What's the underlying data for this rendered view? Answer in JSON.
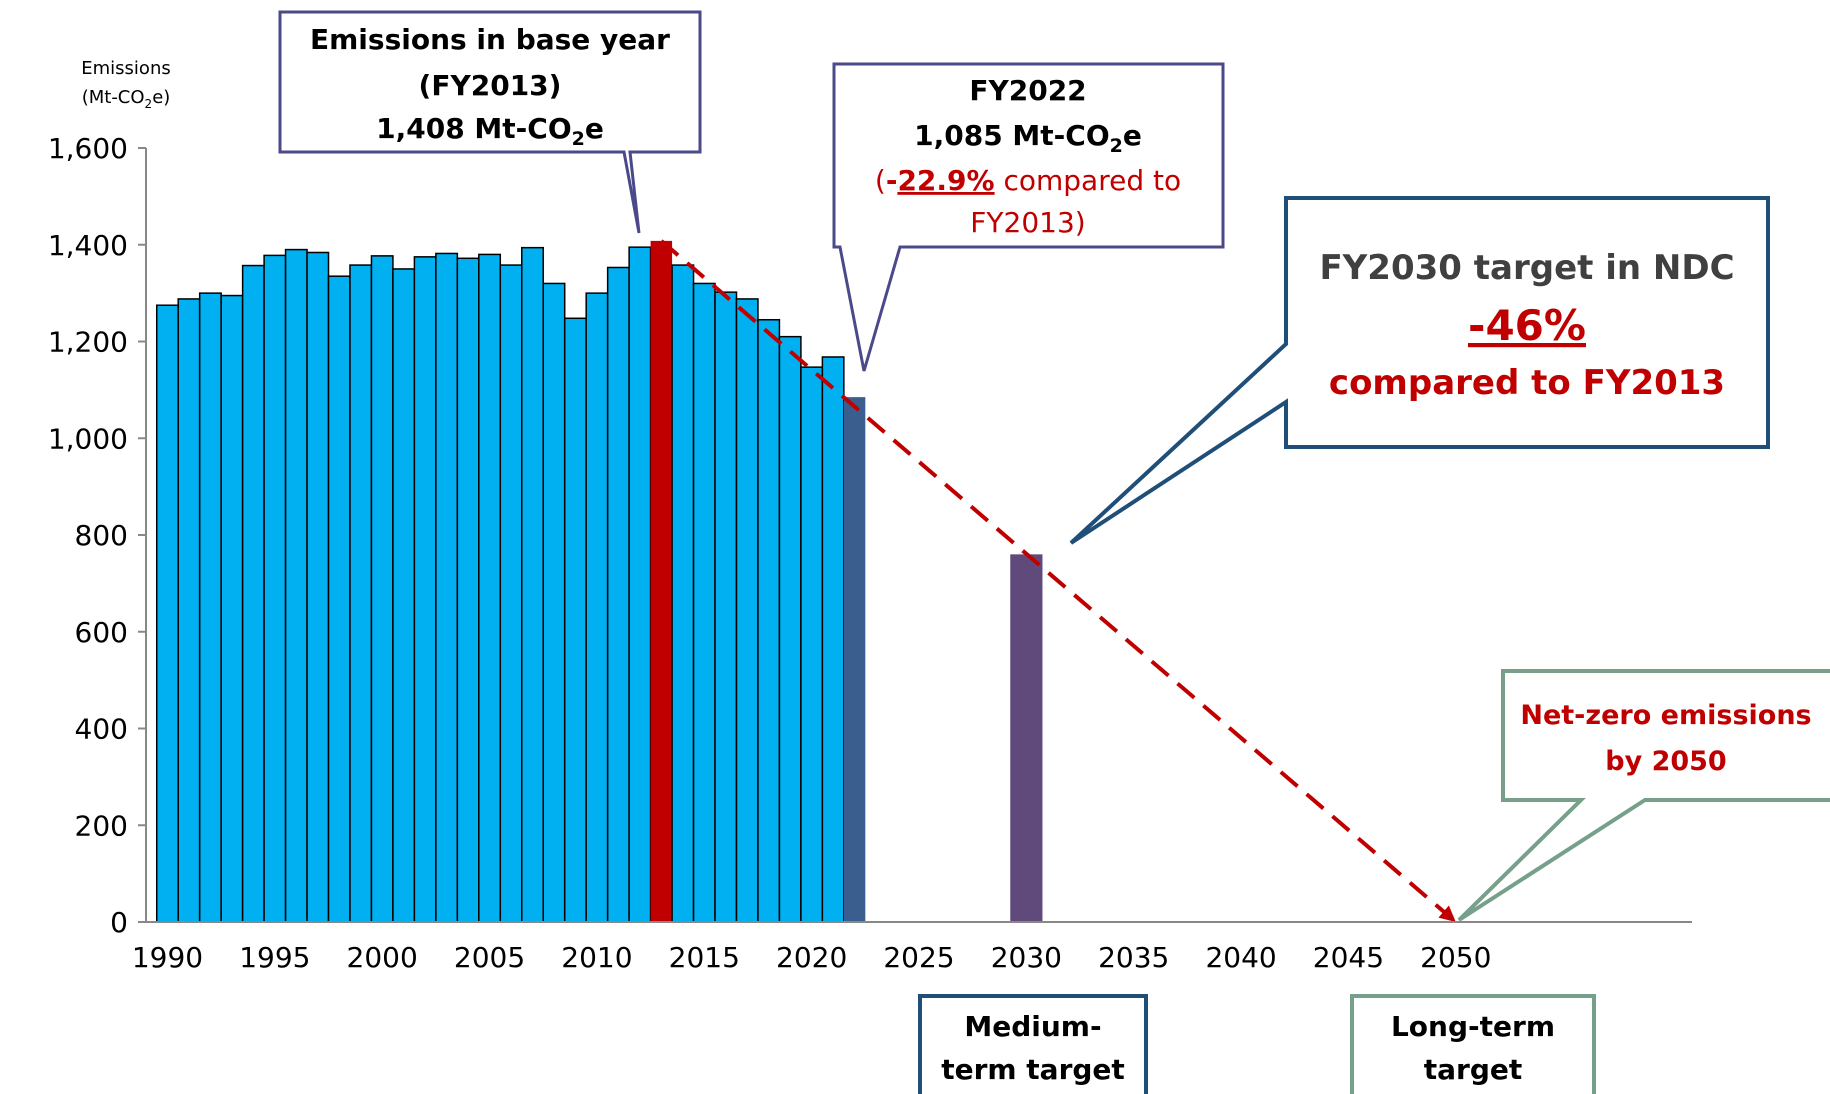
{
  "chart_data": {
    "type": "bar",
    "y_axis_label": {
      "line1": "Emissions",
      "line2": [
        "(Mt-CO",
        "2",
        "e)"
      ]
    },
    "x": [
      1990,
      1991,
      1992,
      1993,
      1994,
      1995,
      1996,
      1997,
      1998,
      1999,
      2000,
      2001,
      2002,
      2003,
      2004,
      2005,
      2006,
      2007,
      2008,
      2009,
      2010,
      2011,
      2012,
      2013,
      2014,
      2015,
      2016,
      2017,
      2018,
      2019,
      2020,
      2021,
      2022,
      2030
    ],
    "values": [
      1275,
      1288,
      1300,
      1295,
      1357,
      1378,
      1390,
      1384,
      1335,
      1358,
      1377,
      1350,
      1375,
      1382,
      1372,
      1380,
      1358,
      1394,
      1320,
      1248,
      1300,
      1353,
      1395,
      1408,
      1358,
      1320,
      1302,
      1288,
      1245,
      1210,
      1147,
      1168,
      1085,
      760
    ],
    "colors": [
      "#00b0f0",
      "#00b0f0",
      "#00b0f0",
      "#00b0f0",
      "#00b0f0",
      "#00b0f0",
      "#00b0f0",
      "#00b0f0",
      "#00b0f0",
      "#00b0f0",
      "#00b0f0",
      "#00b0f0",
      "#00b0f0",
      "#00b0f0",
      "#00b0f0",
      "#00b0f0",
      "#00b0f0",
      "#00b0f0",
      "#00b0f0",
      "#00b0f0",
      "#00b0f0",
      "#00b0f0",
      "#00b0f0",
      "#c00000",
      "#00b0f0",
      "#00b0f0",
      "#00b0f0",
      "#00b0f0",
      "#00b0f0",
      "#00b0f0",
      "#00b0f0",
      "#00b0f0",
      "#3a5f8f",
      "#604a7b"
    ],
    "trend_line": {
      "x": [
        2013,
        2050
      ],
      "values": [
        1408,
        0
      ],
      "color": "#c00000"
    },
    "xlim": [
      1989,
      2061
    ],
    "xticks": [
      1990,
      1995,
      2000,
      2005,
      2010,
      2015,
      2020,
      2025,
      2030,
      2035,
      2040,
      2045,
      2050
    ],
    "ylim": [
      0,
      1600
    ],
    "yticks": [
      0,
      200,
      400,
      600,
      800,
      {
        "value": 1000,
        "label": "1,000"
      },
      {
        "value": 1200,
        "label": "1,200"
      },
      {
        "value": 1400,
        "label": "1,400"
      },
      {
        "value": 1600,
        "label": "1,600"
      }
    ],
    "annotations": {
      "base_year": {
        "line1": "Emissions in base year",
        "line2": "(FY2013)",
        "line3": [
          "1,408 Mt-CO",
          "2",
          "e"
        ]
      },
      "fy2022": {
        "line1": "FY2022",
        "line2": [
          "1,085 Mt-CO",
          "2",
          "e"
        ],
        "line3": [
          "(",
          "-",
          "22.9%",
          " compared to"
        ],
        "line4": "FY2013)"
      },
      "ndc": {
        "line1": "FY2030 target in NDC",
        "line2": "-46%",
        "line3": "compared to FY2013"
      },
      "net_zero": {
        "line1": "Net-zero emissions",
        "line2": "by 2050"
      },
      "medium": {
        "line1": "Medium-",
        "line2": "term target"
      },
      "long": {
        "line1": "Long-term",
        "line2": "target"
      }
    }
  }
}
